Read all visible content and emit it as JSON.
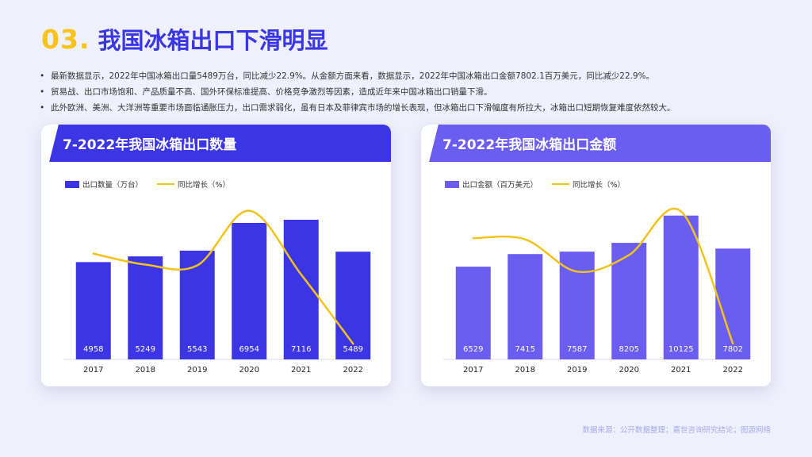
{
  "page": {
    "number": "03.",
    "title": "我国冰箱出口下滑明显",
    "bullets": [
      "最新数据显示，2022年中国冰箱出口量5489万台，同比减少22.9%。从金额方面来看，数据显示，2022年中国冰箱出口金额7802.1百万美元，同比减少22.9%。",
      "贸易战、出口市场饱和、产品质量不高、国外环保标准提高、价格竞争激烈等因素，造成近年来中国冰箱出口销量下滑。",
      "此外欧洲、美洲、大洋洲等重要市场面临通胀压力，出口需求弱化，虽有日本及菲律宾市场的增长表现，但冰箱出口下滑幅度有所拉大，冰箱出口短期恢复难度依然较大。"
    ],
    "footer": "数据来源：公开数据整理；嘉世咨询研究结论；图源网络"
  },
  "colors": {
    "title_number": "#f7c21a",
    "title_text": "#3a35e6",
    "bar_left": "#3b35e6",
    "bar_right": "#6b5cf2",
    "line": "#f2c31a"
  },
  "chart_data": [
    {
      "type": "bar",
      "title": "7-2022年我国冰箱出口数量",
      "categories": [
        "2017",
        "2018",
        "2019",
        "2020",
        "2021",
        "2022"
      ],
      "series": [
        {
          "name": "出口数量（万台）",
          "type": "bar",
          "values": [
            4958,
            5249,
            5543,
            6954,
            7116,
            5489
          ]
        },
        {
          "name": "同比增长（%）",
          "type": "line",
          "values": [
            null,
            5.9,
            5.6,
            25.5,
            2.3,
            -22.9
          ]
        }
      ]
    },
    {
      "type": "bar",
      "title": "7-2022年我国冰箱出口金额",
      "categories": [
        "2017",
        "2018",
        "2019",
        "2020",
        "2021",
        "2022"
      ],
      "series": [
        {
          "name": "出口金额（百万美元）",
          "type": "bar",
          "values": [
            6529,
            7415,
            7587,
            8205,
            10125,
            7802
          ]
        },
        {
          "name": "同比增长（%）",
          "type": "line",
          "values": [
            null,
            13.6,
            2.3,
            8.1,
            23.4,
            -22.9
          ]
        }
      ]
    }
  ]
}
